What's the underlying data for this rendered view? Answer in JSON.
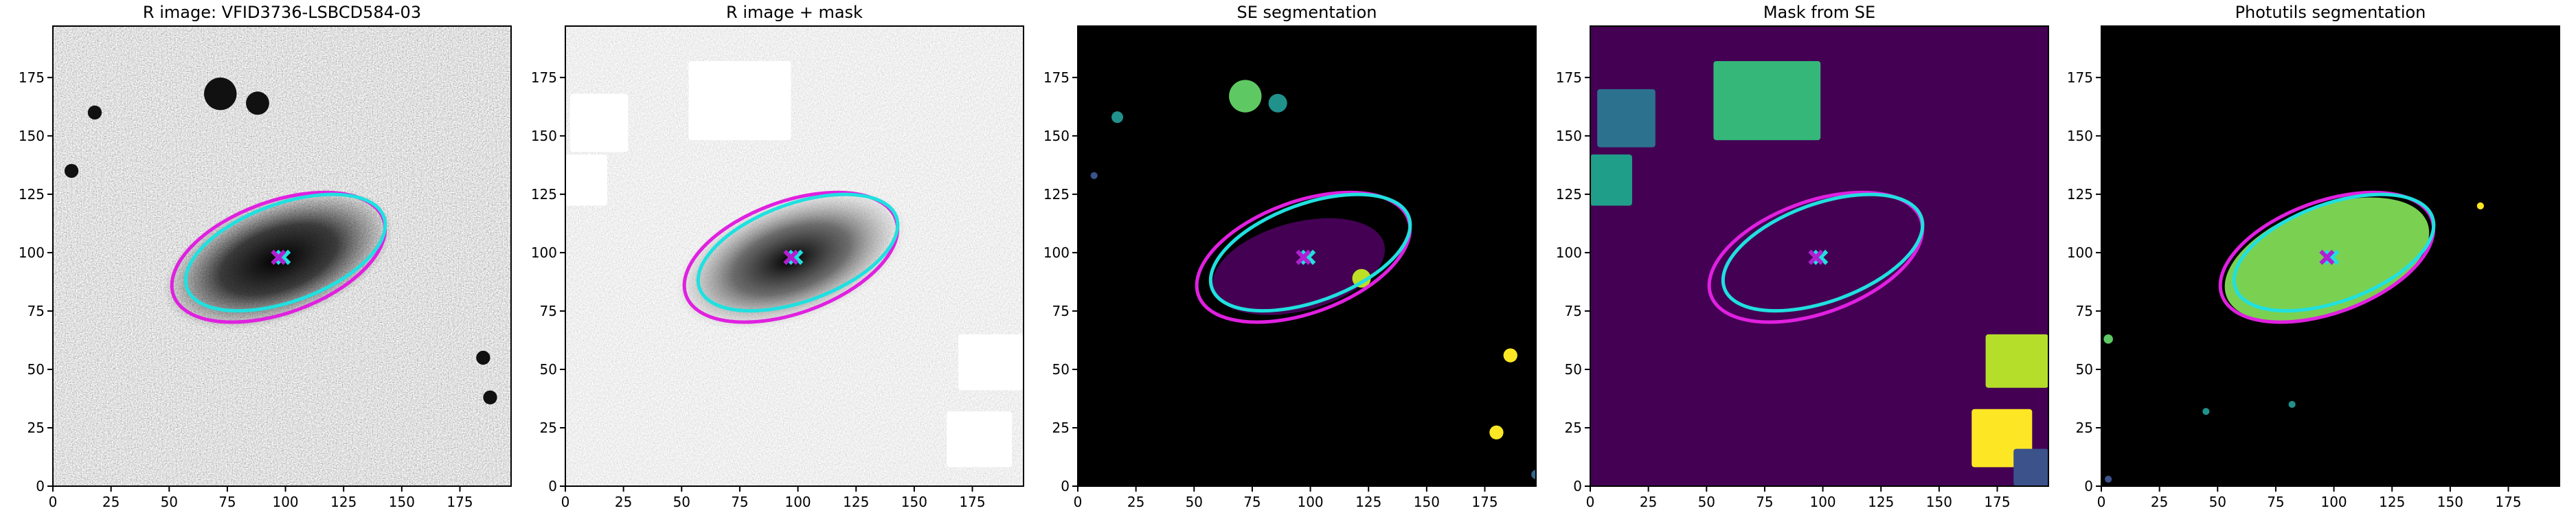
{
  "chart_data": [
    {
      "type": "image",
      "title": "R image: VFID3736-LSBCD584-03",
      "xlim": [
        0,
        197
      ],
      "ylim": [
        0,
        197
      ],
      "xticks": [
        0,
        25,
        50,
        75,
        100,
        125,
        150,
        175
      ],
      "yticks": [
        0,
        25,
        50,
        75,
        100,
        125,
        150,
        175
      ]
    },
    {
      "type": "image",
      "title": "R image + mask",
      "xlim": [
        0,
        197
      ],
      "ylim": [
        0,
        197
      ],
      "xticks": [
        0,
        25,
        50,
        75,
        100,
        125,
        150,
        175
      ],
      "yticks": [
        0,
        25,
        50,
        75,
        100,
        125,
        150,
        175
      ]
    },
    {
      "type": "image",
      "title": "SE segmentation",
      "xlim": [
        0,
        197
      ],
      "ylim": [
        0,
        197
      ],
      "xticks": [
        0,
        25,
        50,
        75,
        100,
        125,
        150,
        175
      ],
      "yticks": [
        0,
        25,
        50,
        75,
        100,
        125,
        150,
        175
      ]
    },
    {
      "type": "image",
      "title": "Mask from SE",
      "xlim": [
        0,
        197
      ],
      "ylim": [
        0,
        197
      ],
      "xticks": [
        0,
        25,
        50,
        75,
        100,
        125,
        150,
        175
      ],
      "yticks": [
        0,
        25,
        50,
        75,
        100,
        125,
        150,
        175
      ]
    },
    {
      "type": "image",
      "title": "Photutils segmentation",
      "xlim": [
        0,
        197
      ],
      "ylim": [
        0,
        197
      ],
      "xticks": [
        0,
        25,
        50,
        75,
        100,
        125,
        150,
        175
      ],
      "yticks": [
        0,
        25,
        50,
        75,
        100,
        125,
        150,
        175
      ]
    }
  ]
}
